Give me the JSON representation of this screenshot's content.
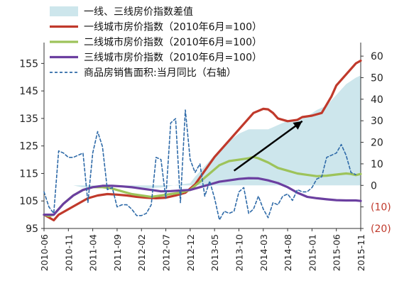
{
  "chart_data": {
    "type": "line",
    "title": "",
    "xlabel": "",
    "ylabel": "",
    "y_left_ticks": [
      "95",
      "105",
      "115",
      "125",
      "135",
      "145",
      "155"
    ],
    "ylim_left": [
      95,
      160
    ],
    "y_right_ticks": [
      "(20)",
      "(10)",
      "0",
      "10",
      "20",
      "30",
      "40",
      "50",
      "60"
    ],
    "ylim_right": [
      -20,
      63
    ],
    "x_tick_labels": [
      "2010-06",
      "2010-11",
      "2011-04",
      "2011-09",
      "2012-02",
      "2012-07",
      "2012-12",
      "2013-05",
      "2013-10",
      "2014-03",
      "2014-08",
      "2015-01",
      "2015-06",
      "2015-11"
    ],
    "x_range_months": [
      0,
      65
    ],
    "x_unit": "months since 2010-06",
    "grid": false,
    "legend_position": "top-left",
    "arrow_annotation": {
      "from": [
        39,
        116
      ],
      "to": [
        53,
        134
      ],
      "axis": "left"
    },
    "series": [
      {
        "name": "一线、三线房价指数差值",
        "kind": "area",
        "axis": "right",
        "color": "#cde6ec",
        "points": [
          [
            0,
            0
          ],
          [
            6,
            0
          ],
          [
            8,
            -1
          ],
          [
            10,
            -1
          ],
          [
            12,
            -1
          ],
          [
            14,
            -0.5
          ],
          [
            16,
            -1
          ],
          [
            18,
            -1.5
          ],
          [
            20,
            -1.5
          ],
          [
            24,
            -1
          ],
          [
            28,
            0.5
          ],
          [
            30,
            1
          ],
          [
            31,
            4
          ],
          [
            33,
            9
          ],
          [
            35,
            14
          ],
          [
            37,
            19
          ],
          [
            40,
            24
          ],
          [
            42,
            26
          ],
          [
            44,
            26
          ],
          [
            46,
            26
          ],
          [
            48,
            28
          ],
          [
            50,
            30
          ],
          [
            52,
            30
          ],
          [
            54,
            32
          ],
          [
            56,
            35
          ],
          [
            58,
            37
          ],
          [
            60,
            42
          ],
          [
            62,
            47
          ],
          [
            64,
            50
          ],
          [
            65,
            51
          ]
        ]
      },
      {
        "name": "一线城市房价指数（2010年6月=100）",
        "kind": "line",
        "axis": "left",
        "color": "#c0392b",
        "points": [
          [
            0,
            100
          ],
          [
            1,
            99
          ],
          [
            2,
            98
          ],
          [
            3,
            100
          ],
          [
            5,
            102
          ],
          [
            7,
            104
          ],
          [
            9,
            106
          ],
          [
            11,
            107
          ],
          [
            13,
            107.5
          ],
          [
            15,
            107.3
          ],
          [
            17,
            107
          ],
          [
            19,
            106.5
          ],
          [
            21,
            106.2
          ],
          [
            23,
            106
          ],
          [
            25,
            106.2
          ],
          [
            27,
            107
          ],
          [
            29,
            108
          ],
          [
            31,
            111
          ],
          [
            33,
            116
          ],
          [
            35,
            121
          ],
          [
            37,
            125
          ],
          [
            39,
            129
          ],
          [
            41,
            133
          ],
          [
            43,
            137
          ],
          [
            45,
            138.5
          ],
          [
            46,
            138.3
          ],
          [
            47,
            137
          ],
          [
            48,
            135
          ],
          [
            50,
            134
          ],
          [
            52,
            134.5
          ],
          [
            53,
            135.5
          ],
          [
            55,
            136
          ],
          [
            57,
            137
          ],
          [
            59,
            143
          ],
          [
            60,
            147
          ],
          [
            62,
            151
          ],
          [
            64,
            155
          ],
          [
            65,
            156
          ]
        ]
      },
      {
        "name": "二线城市房价指数（2010年6月=100）",
        "kind": "line",
        "axis": "left",
        "color": "#9dc35a",
        "points": [
          [
            0,
            100
          ],
          [
            1,
            99.5
          ],
          [
            2,
            100
          ],
          [
            4,
            104
          ],
          [
            6,
            107
          ],
          [
            8,
            109
          ],
          [
            10,
            110
          ],
          [
            12,
            110
          ],
          [
            14,
            109.5
          ],
          [
            16,
            108.5
          ],
          [
            18,
            107.5
          ],
          [
            20,
            107
          ],
          [
            22,
            106.5
          ],
          [
            24,
            107
          ],
          [
            26,
            107.5
          ],
          [
            28,
            108
          ],
          [
            30,
            109
          ],
          [
            32,
            112
          ],
          [
            34,
            115
          ],
          [
            36,
            118
          ],
          [
            38,
            119.5
          ],
          [
            40,
            120
          ],
          [
            42,
            120.5
          ],
          [
            43,
            121
          ],
          [
            44,
            120.5
          ],
          [
            46,
            119
          ],
          [
            48,
            117
          ],
          [
            50,
            116
          ],
          [
            52,
            115
          ],
          [
            54,
            114.5
          ],
          [
            56,
            114
          ],
          [
            58,
            114.2
          ],
          [
            60,
            114.6
          ],
          [
            62,
            115
          ],
          [
            63,
            114.8
          ],
          [
            64,
            114.4
          ],
          [
            65,
            114.8
          ]
        ]
      },
      {
        "name": "三线城市房价指数（2010年6月=100）",
        "kind": "line",
        "axis": "left",
        "color": "#6b3fa0",
        "points": [
          [
            0,
            100
          ],
          [
            2,
            100
          ],
          [
            4,
            104
          ],
          [
            6,
            107
          ],
          [
            8,
            109
          ],
          [
            10,
            110
          ],
          [
            12,
            110.5
          ],
          [
            14,
            110.5
          ],
          [
            16,
            110.3
          ],
          [
            18,
            110
          ],
          [
            20,
            109.5
          ],
          [
            22,
            109
          ],
          [
            24,
            108.5
          ],
          [
            26,
            108.6
          ],
          [
            28,
            108.8
          ],
          [
            30,
            109
          ],
          [
            32,
            110
          ],
          [
            34,
            111
          ],
          [
            36,
            112
          ],
          [
            38,
            112.5
          ],
          [
            40,
            113
          ],
          [
            42,
            113.3
          ],
          [
            44,
            113.2
          ],
          [
            46,
            112.5
          ],
          [
            48,
            111.5
          ],
          [
            50,
            110
          ],
          [
            52,
            108
          ],
          [
            54,
            106.5
          ],
          [
            56,
            106
          ],
          [
            58,
            105.6
          ],
          [
            60,
            105.3
          ],
          [
            62,
            105.2
          ],
          [
            64,
            105.2
          ],
          [
            65,
            105
          ]
        ]
      },
      {
        "name": "商品房销售面积:当月同比（右轴）",
        "kind": "dashed-line",
        "axis": "right",
        "color": "#2e6aa8",
        "points": [
          [
            0,
            -3
          ],
          [
            1,
            -10
          ],
          [
            2,
            -13
          ],
          [
            3,
            16
          ],
          [
            4,
            15
          ],
          [
            5,
            13
          ],
          [
            6,
            13
          ],
          [
            7,
            14
          ],
          [
            8,
            15
          ],
          [
            9,
            -8
          ],
          [
            10,
            15
          ],
          [
            11,
            25
          ],
          [
            12,
            18
          ],
          [
            13,
            -2
          ],
          [
            14,
            -1
          ],
          [
            15,
            -10
          ],
          [
            16,
            -9
          ],
          [
            17,
            -9
          ],
          [
            18,
            -11
          ],
          [
            19,
            -14
          ],
          [
            20,
            -14
          ],
          [
            21,
            -13
          ],
          [
            22,
            -9
          ],
          [
            23,
            13
          ],
          [
            24,
            12
          ],
          [
            25,
            -6
          ],
          [
            26,
            29
          ],
          [
            27,
            31
          ],
          [
            28,
            -8
          ],
          [
            29,
            35
          ],
          [
            30,
            12
          ],
          [
            31,
            6
          ],
          [
            32,
            10
          ],
          [
            33,
            -5
          ],
          [
            34,
            2
          ],
          [
            35,
            -6
          ],
          [
            36,
            -16
          ],
          [
            37,
            -12
          ],
          [
            38,
            -13
          ],
          [
            39,
            -12
          ],
          [
            40,
            -3
          ],
          [
            41,
            -1
          ],
          [
            42,
            -13
          ],
          [
            43,
            -11
          ],
          [
            44,
            -5
          ],
          [
            45,
            -11
          ],
          [
            46,
            -15
          ],
          [
            47,
            -8
          ],
          [
            48,
            -9
          ],
          [
            49,
            -5
          ],
          [
            50,
            -4
          ],
          [
            51,
            -7
          ],
          [
            52,
            -2
          ],
          [
            53,
            -3
          ],
          [
            54,
            -3
          ],
          [
            55,
            -1
          ],
          [
            56,
            3
          ],
          [
            57,
            4
          ],
          [
            58,
            13
          ],
          [
            59,
            14
          ],
          [
            60,
            15
          ],
          [
            61,
            19
          ],
          [
            62,
            14
          ],
          [
            63,
            6
          ],
          [
            64,
            5
          ]
        ]
      }
    ]
  }
}
